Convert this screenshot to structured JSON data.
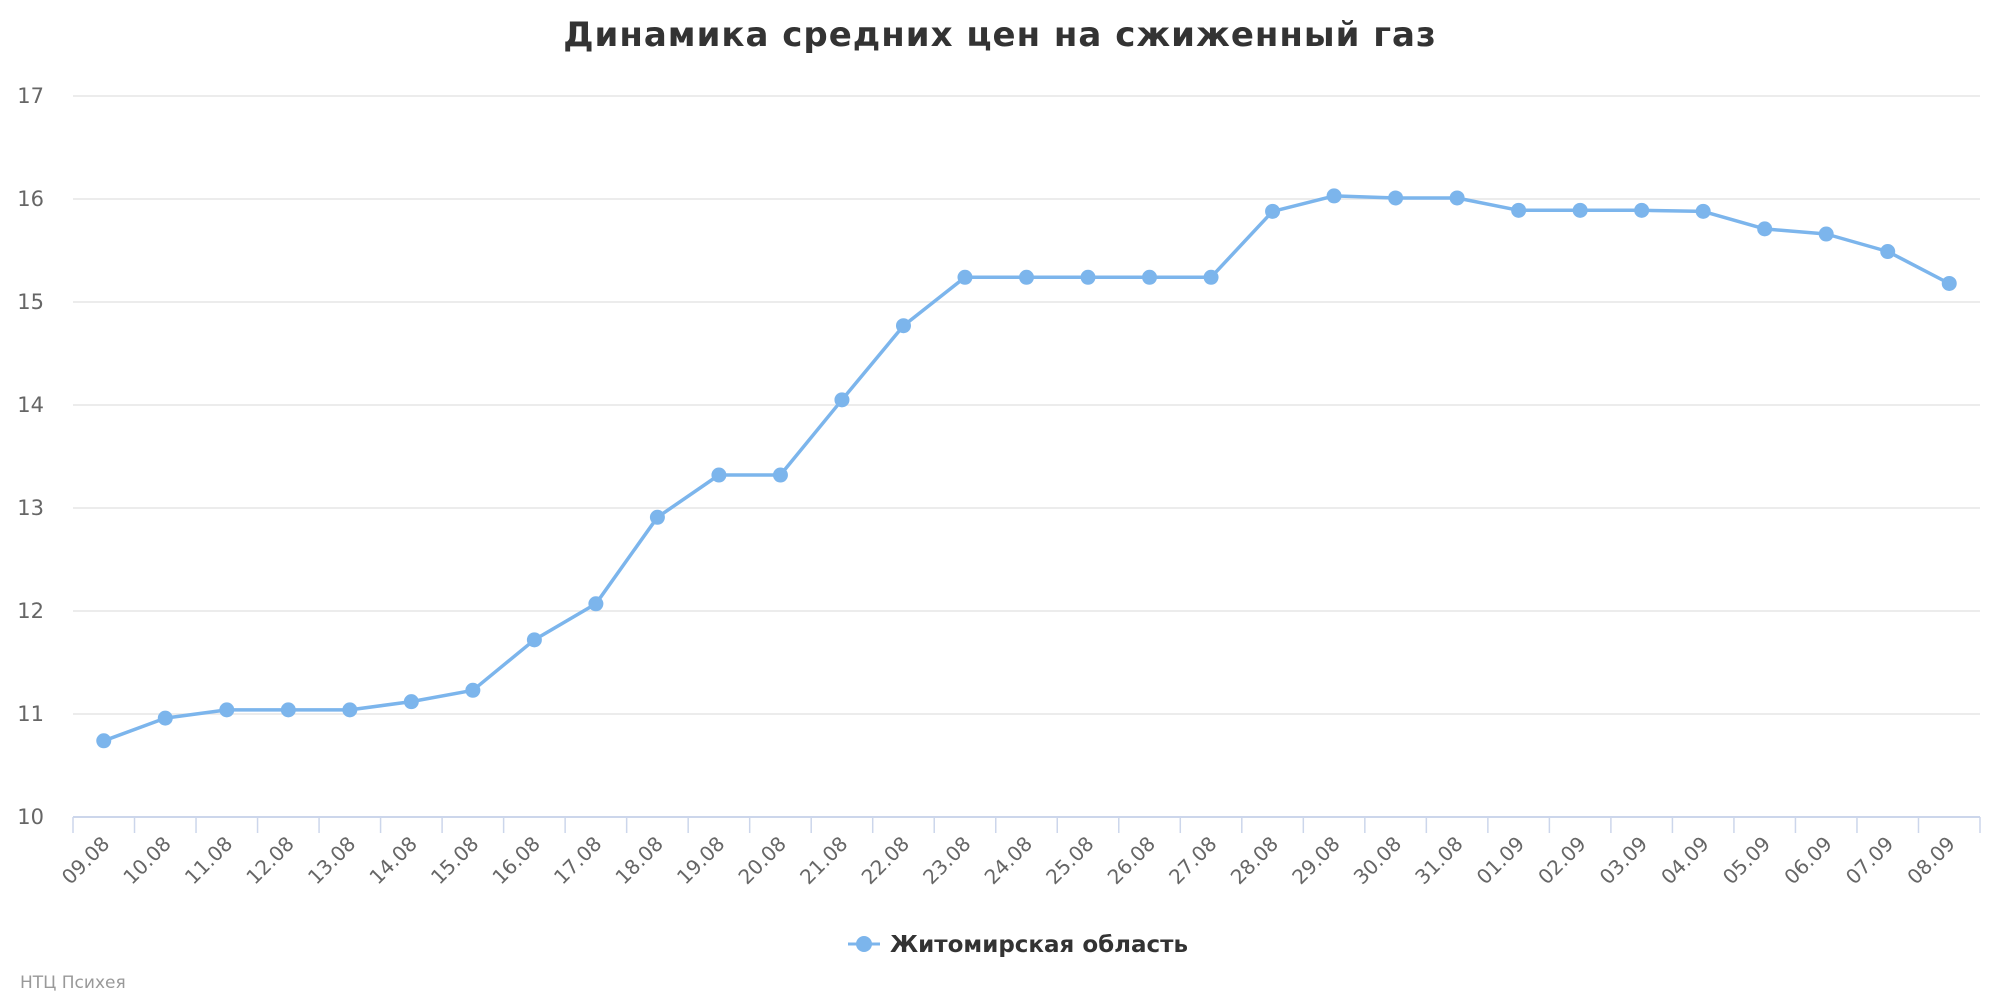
{
  "chart_data": {
    "type": "line",
    "title": "Динамика средних цен на сжиженный газ",
    "categories": [
      "09.08",
      "10.08",
      "11.08",
      "12.08",
      "13.08",
      "14.08",
      "15.08",
      "16.08",
      "17.08",
      "18.08",
      "19.08",
      "20.08",
      "21.08",
      "22.08",
      "23.08",
      "24.08",
      "25.08",
      "26.08",
      "27.08",
      "28.08",
      "29.08",
      "30.08",
      "31.08",
      "01.09",
      "02.09",
      "03.09",
      "04.09",
      "05.09",
      "06.09",
      "07.09",
      "08.09"
    ],
    "series": [
      {
        "name": "Житомирская область",
        "color": "#7cb5ec",
        "values": [
          10.74,
          10.96,
          11.04,
          11.04,
          11.04,
          11.12,
          11.23,
          11.72,
          12.07,
          12.91,
          13.32,
          13.32,
          14.05,
          14.77,
          15.24,
          15.24,
          15.24,
          15.24,
          15.24,
          15.88,
          16.03,
          16.01,
          16.01,
          15.89,
          15.89,
          15.89,
          15.88,
          15.71,
          15.66,
          15.49,
          15.18
        ]
      }
    ],
    "y_ticks": [
      "10",
      "11",
      "12",
      "13",
      "14",
      "15",
      "16",
      "17"
    ],
    "ylim": [
      10,
      17
    ],
    "xlabel": "",
    "ylabel": "",
    "grid": true,
    "legend_position": "bottom-center"
  },
  "credits": "НТЦ Психея"
}
